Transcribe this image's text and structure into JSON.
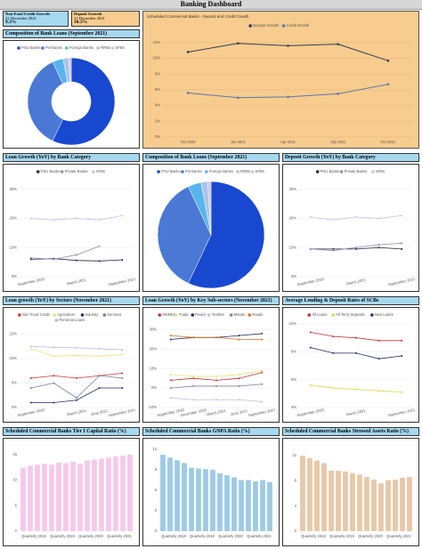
{
  "header": {
    "title": "Banking Dashboard"
  },
  "kpis": [
    {
      "title": "Non-Food Credit Growth",
      "date": "31 December 2021",
      "value": "9.3%"
    },
    {
      "title": "Deposit Growth",
      "date": "31 December 2021",
      "value": "10.3%"
    }
  ],
  "chart_data": [
    {
      "type": "donut",
      "title": "Composition of Bank Loans (September 2021)",
      "categories": [
        "PSU Banks",
        "Pvt Banks",
        "Foreign Banks",
        "RRBs",
        "SFBs"
      ],
      "values": [
        57,
        36,
        4,
        2,
        1
      ],
      "colors": [
        "#1848d0",
        "#4a78d4",
        "#58b4ee",
        "#a8c4ea",
        "#c8c8ea"
      ]
    },
    {
      "type": "line",
      "title": "Scheduled Commercial Banks - Deposit and Credit Growth",
      "categories": [
        "Oct 2020",
        "Jan 2021",
        "Apr 2021",
        "July 2021",
        "Oct 2021"
      ],
      "series": [
        {
          "name": "Deposit Growth",
          "color": "#2e3d5c",
          "values": [
            10.8,
            11.9,
            11.6,
            11.8,
            9.7
          ]
        },
        {
          "name": "Credit Growth",
          "color": "#5c78a8",
          "values": [
            5.6,
            5.0,
            5.1,
            5.5,
            6.7
          ]
        }
      ],
      "ylim": [
        0,
        13
      ],
      "yticks": [
        {
          "value": 0,
          "label": "0%"
        },
        {
          "value": 2,
          "label": "2%"
        },
        {
          "value": 4,
          "label": "4%"
        },
        {
          "value": 6,
          "label": "6%"
        },
        {
          "value": 8,
          "label": "8%"
        },
        {
          "value": 10,
          "label": "10%"
        },
        {
          "value": 12,
          "label": "12%"
        }
      ],
      "grid": true
    },
    {
      "type": "line",
      "title": "Loan Growth (YoY) by Bank Category",
      "categories": [
        "September 2020",
        null,
        "March 2021",
        null,
        "September 2021"
      ],
      "series": [
        {
          "name": "PSU Banks",
          "color": "#232c4a",
          "values": [
            6,
            6.2,
            5.6,
            5.4,
            5.8
          ]
        },
        {
          "name": "Private Banks",
          "color": "#8c8caa",
          "values": [
            6.5,
            6,
            7.5,
            10.5,
            null
          ]
        },
        {
          "name": "SFBs",
          "color": "#c6c6e6",
          "values": [
            20,
            19.5,
            20,
            19.5,
            21
          ]
        }
      ],
      "ylim": [
        0,
        33
      ],
      "yticks": [
        {
          "value": 0,
          "label": "0%"
        },
        {
          "value": 10,
          "label": "10%"
        },
        {
          "value": 20,
          "label": "20%"
        },
        {
          "value": 30,
          "label": "30%"
        }
      ],
      "grid": true
    },
    {
      "type": "pie",
      "title": "Composition of Bank Loans (September 2021)",
      "categories": [
        "PSU Banks",
        "Pvt Banks",
        "Foreign Banks",
        "RRBs",
        "SFBs"
      ],
      "values": [
        57,
        36,
        4,
        2,
        1
      ],
      "colors": [
        "#1848d0",
        "#4a78d4",
        "#58b4ee",
        "#a8c4ea",
        "#c8c8ea"
      ]
    },
    {
      "type": "line",
      "title": "Deposit Growth (YoY) by Bank Category",
      "categories": [
        "September 2020",
        null,
        "March 2021",
        null,
        "September 2021"
      ],
      "series": [
        {
          "name": "PSU Banks",
          "color": "#232c4a",
          "values": [
            9.5,
            9.5,
            9.5,
            10,
            9.5
          ]
        },
        {
          "name": "Private Banks",
          "color": "#8c8caa",
          "values": [
            9.5,
            9,
            10,
            11,
            11.5
          ]
        },
        {
          "name": "SFBs",
          "color": "#c6c6e6",
          "values": [
            20.5,
            19.5,
            20.5,
            20,
            21
          ]
        }
      ],
      "ylim": [
        0,
        33
      ],
      "yticks": [
        {
          "value": 0,
          "label": "0%"
        },
        {
          "value": 10,
          "label": "10%"
        },
        {
          "value": 20,
          "label": "20%"
        },
        {
          "value": 30,
          "label": "30%"
        }
      ],
      "grid": true
    },
    {
      "type": "line",
      "title": "Loan growth (YoY) by Sectors (November 2021)",
      "categories": [
        "September 2020",
        null,
        "March 2021",
        "June 2021",
        "September 2021"
      ],
      "series": [
        {
          "name": "Non Food Credit",
          "color": "#d93030",
          "values": [
            6,
            6.5,
            6,
            6.5,
            7
          ]
        },
        {
          "name": "Agriculture",
          "color": "#e6e46c",
          "values": [
            12,
            10.5,
            10.6,
            10.5,
            10.8
          ]
        },
        {
          "name": "Industry",
          "color": "#203050",
          "values": [
            1,
            1,
            1.5,
            4,
            4
          ]
        },
        {
          "name": "Services",
          "color": "#7080a0",
          "values": [
            4,
            5,
            2,
            6.5,
            6
          ]
        },
        {
          "name": "Personal Loans",
          "color": "#b8b8e0",
          "values": [
            12.5,
            12.3,
            12.2,
            12,
            11.8
          ]
        }
      ],
      "ylim": [
        0,
        16
      ],
      "yticks": [
        {
          "value": 0,
          "label": "0%"
        },
        {
          "value": 5,
          "label": "5%"
        },
        {
          "value": 10,
          "label": "10%"
        },
        {
          "value": 15,
          "label": "15%"
        }
      ],
      "grid": true
    },
    {
      "type": "line",
      "title": "Loan Growth (YoY) by Key Sub-sectors (November 2021)",
      "categories": [
        "September 2020",
        "December 2020",
        "March 2021",
        "June 2021",
        "September 2021"
      ],
      "series": [
        {
          "name": "MSMEs",
          "color": "#c03030",
          "values": [
            4,
            5,
            4,
            5,
            8
          ]
        },
        {
          "name": "Trade",
          "color": "#e6e070",
          "values": [
            7,
            6,
            6,
            7,
            9
          ]
        },
        {
          "name": "Power",
          "color": "#203060",
          "values": [
            25,
            26,
            26,
            27,
            28
          ]
        },
        {
          "name": "Textiles",
          "color": "#c0c0e0",
          "values": [
            -5,
            -6,
            -6,
            -6,
            -7
          ]
        },
        {
          "name": "Metals",
          "color": "#8080a0",
          "values": [
            0,
            1,
            1,
            1,
            2
          ]
        },
        {
          "name": "Roads",
          "color": "#e07020",
          "values": [
            27,
            26,
            26,
            25,
            25
          ]
        }
      ],
      "ylim": [
        -10,
        33
      ],
      "yticks": [
        {
          "value": -10,
          "label": "-10%"
        },
        {
          "value": 0,
          "label": "0%"
        },
        {
          "value": 10,
          "label": "10%"
        },
        {
          "value": 20,
          "label": "20%"
        },
        {
          "value": 30,
          "label": "30%"
        }
      ],
      "grid": true
    },
    {
      "type": "line",
      "title": "Average Lending & Deposit Rates of SCBs",
      "categories": [
        "September 2020",
        null,
        "March 2021",
        null,
        "September 2021"
      ],
      "series": [
        {
          "name": "All Loans",
          "color": "#c03030",
          "values": [
            9.4,
            9.1,
            9.0,
            8.8,
            8.8
          ]
        },
        {
          "name": "All Term Deposits",
          "color": "#d8d850",
          "values": [
            5.6,
            5.4,
            5.3,
            5.2,
            5.1
          ]
        },
        {
          "name": "New Loans",
          "color": "#203060",
          "values": [
            8.3,
            7.9,
            7.9,
            7.5,
            7.7
          ]
        }
      ],
      "ylim": [
        4,
        10
      ],
      "yticks": [
        {
          "value": 4,
          "label": "4%"
        },
        {
          "value": 6,
          "label": "6%"
        },
        {
          "value": 8,
          "label": "8%"
        },
        {
          "value": 10,
          "label": "10%"
        }
      ],
      "grid": true
    },
    {
      "type": "bar",
      "title": "Scheduled Commercial Banks Tier I Capital Ratio (%)",
      "categories": [
        "Quarterly 2018",
        null,
        null,
        null,
        "Quarterly 2019",
        null,
        null,
        null,
        "Quarterly 2020",
        null,
        null,
        null,
        "Quarterly 2021",
        null,
        null,
        null
      ],
      "values": [
        12.4,
        12.8,
        13.0,
        13.2,
        13.0,
        13.4,
        13.3,
        13.6,
        13.2,
        13.8,
        14.0,
        14.2,
        14.4,
        14.6,
        14.8,
        15.0
      ],
      "color": "#f6c8ec",
      "ylim": [
        0,
        16
      ],
      "yticks": [
        0,
        5,
        10,
        15
      ],
      "grid": false
    },
    {
      "type": "bar",
      "title": "Scheduled Commercial Banks GNPA Ratio (%)",
      "categories": [
        "Quarterly 2018",
        null,
        null,
        null,
        "Quarterly 2019",
        null,
        null,
        null,
        "Quarterly 2020",
        null,
        null,
        null,
        "Quarterly 2021",
        null,
        null,
        null
      ],
      "values": [
        11.2,
        10.8,
        10.4,
        10.0,
        9.3,
        9.2,
        9.1,
        9.0,
        8.5,
        8.2,
        7.9,
        7.5,
        7.5,
        7.3,
        7.5,
        7.2
      ],
      "color": "#9ecae6",
      "ylim": [
        0,
        12
      ],
      "yticks": [
        0,
        3,
        6,
        9,
        12
      ],
      "grid": false
    },
    {
      "type": "bar",
      "title": "Scheduled Commercial Banks Stressed Assets Ratio (%)",
      "categories": [
        "Quarterly 2018",
        null,
        null,
        null,
        "Quarterly 2019",
        null,
        null,
        null,
        "Quarterly 2020",
        null,
        null,
        null,
        "Quarterly 2021",
        null,
        null,
        null
      ],
      "values": [
        12.0,
        11.6,
        11.2,
        10.8,
        9.6,
        9.6,
        9.5,
        9.2,
        9.0,
        8.6,
        8.2,
        7.6,
        8.1,
        8.2,
        8.5,
        8.6
      ],
      "color": "#e8c8a8",
      "ylim": [
        0,
        13
      ],
      "yticks": [
        0,
        4,
        8,
        12
      ],
      "grid": false
    }
  ]
}
